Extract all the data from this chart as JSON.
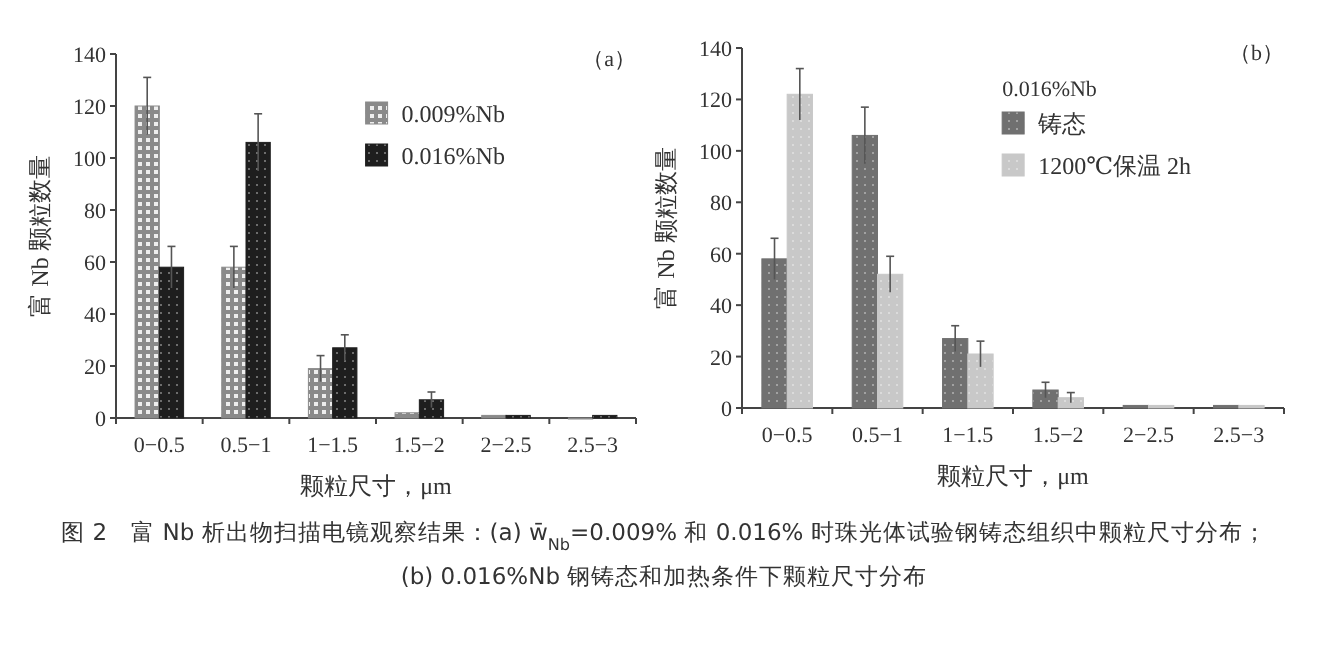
{
  "chart_data": [
    {
      "type": "bar",
      "categories": [
        "0−0.5",
        "0.5−1",
        "1−1.5",
        "1.5−2",
        "2−2.5",
        "2.5−3"
      ],
      "xlabel": "颗粒尺寸，μm",
      "ylabel": "富 Nb 颗粒数量",
      "ylim": [
        0,
        140
      ],
      "yticks": [
        0,
        20,
        40,
        60,
        80,
        100,
        120,
        140
      ],
      "legend": "top right",
      "series": [
        {
          "name": "0.009%Nb",
          "color": "#8a8a8a",
          "values": [
            120,
            58,
            19,
            2,
            1,
            0
          ],
          "errors": [
            11,
            8,
            5,
            null,
            null,
            null
          ]
        },
        {
          "name": "0.016%Nb",
          "color": "#1e1e1e",
          "values": [
            58,
            106,
            27,
            7,
            1,
            1
          ],
          "errors": [
            8,
            11,
            5,
            3,
            null,
            null
          ]
        }
      ],
      "annotations": [
        "（a）",
        "图 2　富 Nb 析出物扫描电镜观察结果：(a) w̄$_{Nb}$=0.009% 和 0.016% 时珠光体试验钢铸态组织中颗粒尺寸分布；",
        "(b) 0.016%Nb 钢铸态和加热条件下颗粒尺寸分布"
      ]
    },
    {
      "type": "bar",
      "categories": [
        "0−0.5",
        "0.5−1",
        "1−1.5",
        "1.5−2",
        "2−2.5",
        "2.5−3"
      ],
      "xlabel": "颗粒尺寸，μm",
      "ylabel": "富 Nb 颗粒数量",
      "ylim": [
        0,
        140
      ],
      "yticks": [
        0,
        20,
        40,
        60,
        80,
        100,
        120,
        140
      ],
      "legend": "top right",
      "legend_title": "0.016%Nb",
      "series": [
        {
          "name": "铸态",
          "color": "#707070",
          "values": [
            58,
            106,
            27,
            7,
            1,
            1
          ],
          "errors": [
            8,
            11,
            5,
            3,
            null,
            null
          ]
        },
        {
          "name": "1200℃保温 2h",
          "color": "#c8c8c8",
          "values": [
            122,
            52,
            21,
            4,
            1,
            1
          ],
          "errors": [
            10,
            7,
            5,
            2,
            null,
            null
          ]
        }
      ],
      "annotations": [
        "（b）"
      ]
    }
  ]
}
